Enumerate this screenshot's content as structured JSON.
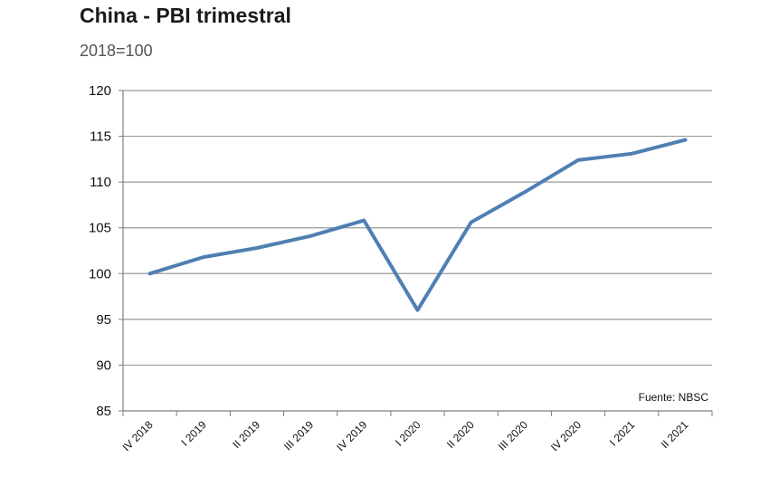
{
  "header": {
    "title": "China - PBI trimestral",
    "subtitle": "2018=100"
  },
  "chart_data": {
    "type": "line",
    "title": "China - PBI trimestral",
    "subtitle": "2018=100",
    "categories": [
      "IV 2018",
      "I 2019",
      "II 2019",
      "III 2019",
      "IV 2019",
      "I 2020",
      "II 2020",
      "III 2020",
      "IV 2020",
      "I 2021",
      "II 2021"
    ],
    "series": [
      {
        "values": [
          100.0,
          101.8,
          102.8,
          104.1,
          105.8,
          96.0,
          105.6,
          108.9,
          112.4,
          113.1,
          114.6
        ]
      }
    ],
    "yticks": [
      85,
      90,
      95,
      100,
      105,
      110,
      115,
      120
    ],
    "ylim": [
      85,
      120
    ],
    "grid": true,
    "line_color": "#4f7fb2",
    "source": "Fuente: NBSC"
  }
}
